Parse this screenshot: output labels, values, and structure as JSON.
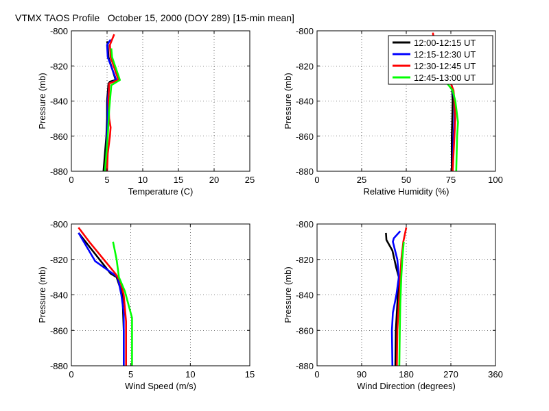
{
  "figure_title": "VTMX TAOS Profile   October 15, 2000 (DOY 289) [15-min mean]",
  "colors": {
    "series": [
      "#000000",
      "#0000ff",
      "#ff0000",
      "#00ff00"
    ]
  },
  "chart_data": [
    {
      "type": "line",
      "xlabel": "Temperature (C)",
      "ylabel": "Pressure (mb)",
      "xlim": [
        0,
        25
      ],
      "ylim": [
        -880,
        -800
      ],
      "xticks": [
        0,
        5,
        10,
        15,
        20,
        25
      ],
      "yticks": [
        -880,
        -860,
        -840,
        -820,
        -800
      ],
      "grid": true,
      "series": [
        {
          "name": "12:00-12:15 UT",
          "x": [
            4.5,
            4.7,
            4.9,
            5.0,
            5.0,
            5.1,
            5.2,
            5.4,
            6.2,
            5.2,
            5.1,
            5.0
          ],
          "y": [
            -880,
            -870,
            -860,
            -850,
            -840,
            -835,
            -830,
            -829,
            -828,
            -815,
            -808,
            -806
          ]
        },
        {
          "name": "12:15-12:30 UT",
          "x": [
            4.8,
            4.9,
            5.0,
            5.1,
            5.1,
            5.2,
            5.3,
            6.3,
            5.1,
            5.0,
            5.5
          ],
          "y": [
            -880,
            -870,
            -860,
            -850,
            -840,
            -835,
            -830,
            -828,
            -815,
            -808,
            -805
          ]
        },
        {
          "name": "12:30-12:45 UT",
          "x": [
            5.0,
            5.1,
            5.4,
            5.5,
            5.3,
            5.2,
            5.3,
            6.6,
            5.5,
            5.4,
            6.0
          ],
          "y": [
            -880,
            -870,
            -860,
            -855,
            -850,
            -840,
            -830,
            -828,
            -815,
            -808,
            -802
          ]
        },
        {
          "name": "12:45-13:00 UT",
          "x": [
            4.7,
            4.9,
            5.1,
            5.3,
            5.6,
            6.8,
            5.7,
            5.6
          ],
          "y": [
            -880,
            -870,
            -860,
            -845,
            -831,
            -828,
            -815,
            -810
          ]
        }
      ]
    },
    {
      "type": "line",
      "xlabel": "Relative Humidity (%)",
      "ylabel": "Pressure (mb)",
      "xlim": [
        0,
        100
      ],
      "ylim": [
        -880,
        -800
      ],
      "xticks": [
        0,
        25,
        50,
        75,
        100
      ],
      "yticks": [
        -880,
        -860,
        -840,
        -820,
        -800
      ],
      "grid": true,
      "legend": {
        "position": "top-right"
      },
      "series": [
        {
          "name": "12:00-12:15 UT",
          "x": [
            75.5,
            75.5,
            75.8,
            76.0,
            75.8,
            75.5
          ],
          "y": [
            -880,
            -860,
            -850,
            -840,
            -835,
            -832
          ]
        },
        {
          "name": "12:15-12:30 UT",
          "x": [
            76.0,
            76.5,
            77.0,
            77.0,
            76.0,
            75.5
          ],
          "y": [
            -880,
            -860,
            -850,
            -840,
            -834,
            -831
          ]
        },
        {
          "name": "12:30-12:45 UT",
          "x": [
            76.0,
            77.0,
            77.5,
            77.0,
            76.5,
            75.0,
            65.0,
            65.0
          ],
          "y": [
            -880,
            -860,
            -850,
            -840,
            -834,
            -830,
            -802,
            -801
          ]
        },
        {
          "name": "12:45-13:00 UT",
          "x": [
            78.0,
            78.5,
            79.0,
            77.5,
            76.0,
            73.0
          ],
          "y": [
            -880,
            -860,
            -852,
            -840,
            -834,
            -830
          ]
        }
      ]
    },
    {
      "type": "line",
      "xlabel": "Wind Speed (m/s)",
      "ylabel": "Pressure (mb)",
      "xlim": [
        0,
        15
      ],
      "ylim": [
        -880,
        -800
      ],
      "xticks": [
        0,
        5,
        10,
        15
      ],
      "yticks": [
        -880,
        -860,
        -840,
        -820,
        -800
      ],
      "grid": true,
      "series": [
        {
          "name": "12:00-12:15 UT",
          "x": [
            4.4,
            4.4,
            4.3,
            3.8,
            3.3,
            0.6
          ],
          "y": [
            -880,
            -860,
            -840,
            -830,
            -828,
            -805
          ]
        },
        {
          "name": "12:15-12:30 UT",
          "x": [
            4.4,
            4.4,
            4.2,
            3.9,
            2.0,
            0.6
          ],
          "y": [
            -880,
            -850,
            -840,
            -830,
            -821,
            -805
          ]
        },
        {
          "name": "12:30-12:45 UT",
          "x": [
            4.6,
            4.6,
            4.4,
            4.1,
            3.7,
            1.5,
            0.6
          ],
          "y": [
            -880,
            -855,
            -840,
            -832,
            -828,
            -810,
            -802
          ]
        },
        {
          "name": "12:45-13:00 UT",
          "x": [
            5.1,
            5.1,
            4.5,
            4.0,
            3.8,
            3.5
          ],
          "y": [
            -880,
            -853,
            -838,
            -830,
            -820,
            -810
          ]
        }
      ]
    },
    {
      "type": "line",
      "xlabel": "Wind Direction (degrees)",
      "ylabel": "Pressure (mb)",
      "xlim": [
        0,
        360
      ],
      "ylim": [
        -880,
        -800
      ],
      "xticks": [
        0,
        90,
        180,
        270,
        360
      ],
      "yticks": [
        -880,
        -860,
        -840,
        -820,
        -800
      ],
      "grid": true,
      "series": [
        {
          "name": "12:00-12:15 UT",
          "x": [
            158,
            159,
            162,
            165,
            160,
            152,
            140,
            139
          ],
          "y": [
            -880,
            -860,
            -845,
            -830,
            -825,
            -815,
            -809,
            -805
          ]
        },
        {
          "name": "12:15-12:30 UT",
          "x": [
            152,
            151,
            153,
            160,
            165,
            162,
            153,
            155,
            168
          ],
          "y": [
            -880,
            -860,
            -850,
            -840,
            -830,
            -820,
            -810,
            -808,
            -804
          ]
        },
        {
          "name": "12:30-12:45 UT",
          "x": [
            161,
            162,
            165,
            168,
            170,
            174,
            180
          ],
          "y": [
            -880,
            -860,
            -845,
            -830,
            -820,
            -810,
            -802
          ]
        },
        {
          "name": "12:45-13:00 UT",
          "x": [
            166,
            167,
            168,
            170,
            172,
            175
          ],
          "y": [
            -880,
            -860,
            -845,
            -830,
            -820,
            -810
          ]
        }
      ]
    }
  ]
}
